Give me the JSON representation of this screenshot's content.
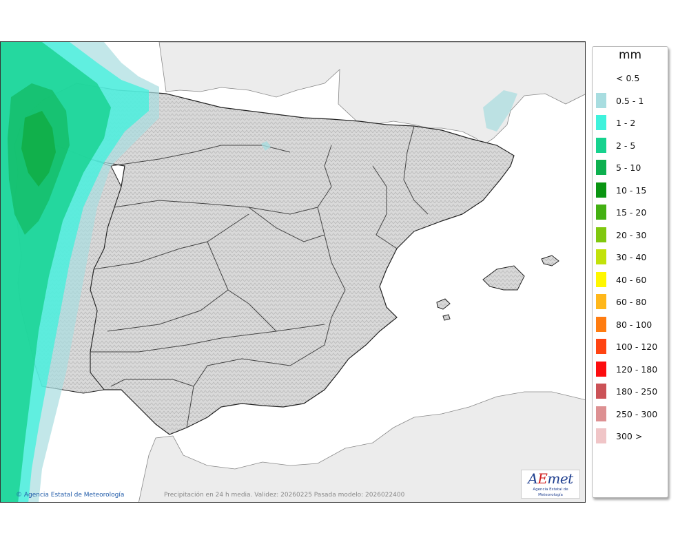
{
  "legend": {
    "title": "mm",
    "items": [
      {
        "label": "< 0.5",
        "color": ""
      },
      {
        "label": "0.5 - 1",
        "color": "#a8dde0"
      },
      {
        "label": "1 - 2",
        "color": "#3ff2dc"
      },
      {
        "label": "2 - 5",
        "color": "#16d28e"
      },
      {
        "label": "5 - 10",
        "color": "#0db04f"
      },
      {
        "label": "10 - 15",
        "color": "#0a9512"
      },
      {
        "label": "15 - 20",
        "color": "#43b012"
      },
      {
        "label": "20 - 30",
        "color": "#80c80e"
      },
      {
        "label": "30 - 40",
        "color": "#c2e20a"
      },
      {
        "label": "40 - 60",
        "color": "#fff700"
      },
      {
        "label": "60 - 80",
        "color": "#ffb71a"
      },
      {
        "label": "80 - 100",
        "color": "#ff7c10"
      },
      {
        "label": "100 - 120",
        "color": "#ff4412"
      },
      {
        "label": "120 - 180",
        "color": "#fc0d0f"
      },
      {
        "label": "180 - 250",
        "color": "#cb5257"
      },
      {
        "label": "250 - 300",
        "color": "#dd9092"
      },
      {
        "label": "300 >",
        "color": "#f0c5c7"
      }
    ]
  },
  "map": {
    "copyright": "© Agencia Estatal de Meteorología",
    "caption": "Precipitación en 24 h media. Validez: 20260225 Pasada modelo: 2026022400",
    "logo": {
      "word": "AEmet",
      "subtitle": "Agencia Estatal de Meteorología"
    }
  }
}
